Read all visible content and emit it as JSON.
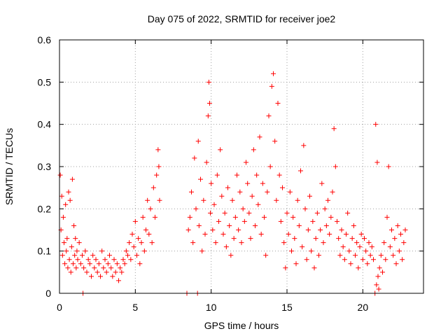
{
  "chart_data": {
    "type": "scatter",
    "title": "Day 075 of 2022, SRMTID for receiver joe2",
    "xlabel": "GPS time / hours",
    "ylabel": "SRMTID / TECUs",
    "xlim": [
      0,
      24
    ],
    "ylim": [
      0,
      0.6
    ],
    "xticks": [
      0,
      5,
      10,
      15,
      20
    ],
    "yticks": [
      0,
      0.1,
      0.2,
      0.3,
      0.4,
      0.5,
      0.6
    ],
    "xtick_labels": [
      "0",
      "5",
      "10",
      "15",
      "20"
    ],
    "ytick_labels": [
      "0",
      "0.1",
      "0.2",
      "0.3",
      "0.4",
      "0.5",
      "0.6"
    ],
    "grid": true,
    "marker": "plus",
    "marker_color": "#ff0000",
    "series": [
      {
        "name": "SRMTID",
        "points": [
          [
            0.05,
            0.28
          ],
          [
            0.1,
            0.15
          ],
          [
            0.15,
            0.23
          ],
          [
            0.2,
            0.09
          ],
          [
            0.25,
            0.18
          ],
          [
            0.3,
            0.12
          ],
          [
            0.35,
            0.07
          ],
          [
            0.4,
            0.21
          ],
          [
            0.45,
            0.1
          ],
          [
            0.5,
            0.13
          ],
          [
            0.55,
            0.06
          ],
          [
            0.6,
            0.24
          ],
          [
            0.65,
            0.08
          ],
          [
            0.7,
            0.22
          ],
          [
            0.75,
            0.05
          ],
          [
            0.8,
            0.11
          ],
          [
            0.85,
            0.27
          ],
          [
            0.9,
            0.07
          ],
          [
            0.95,
            0.16
          ],
          [
            1.0,
            0.09
          ],
          [
            1.05,
            0.13
          ],
          [
            1.1,
            0.06
          ],
          [
            1.15,
            0.1
          ],
          [
            1.2,
            0.08
          ],
          [
            1.3,
            0.12
          ],
          [
            1.4,
            0.07
          ],
          [
            1.5,
            0.09
          ],
          [
            1.55,
            0.0
          ],
          [
            1.6,
            0.06
          ],
          [
            1.7,
            0.1
          ],
          [
            1.8,
            0.05
          ],
          [
            1.9,
            0.08
          ],
          [
            2.0,
            0.07
          ],
          [
            2.1,
            0.04
          ],
          [
            2.2,
            0.09
          ],
          [
            2.3,
            0.06
          ],
          [
            2.4,
            0.08
          ],
          [
            2.5,
            0.05
          ],
          [
            2.6,
            0.07
          ],
          [
            2.7,
            0.04
          ],
          [
            2.8,
            0.1
          ],
          [
            2.9,
            0.06
          ],
          [
            3.0,
            0.08
          ],
          [
            3.1,
            0.05
          ],
          [
            3.2,
            0.07
          ],
          [
            3.3,
            0.09
          ],
          [
            3.4,
            0.06
          ],
          [
            3.5,
            0.04
          ],
          [
            3.6,
            0.08
          ],
          [
            3.7,
            0.05
          ],
          [
            3.8,
            0.07
          ],
          [
            3.9,
            0.03
          ],
          [
            4.0,
            0.06
          ],
          [
            4.1,
            0.05
          ],
          [
            4.2,
            0.08
          ],
          [
            4.3,
            0.07
          ],
          [
            4.4,
            0.1
          ],
          [
            4.5,
            0.09
          ],
          [
            4.6,
            0.12
          ],
          [
            4.7,
            0.08
          ],
          [
            4.8,
            0.14
          ],
          [
            4.9,
            0.11
          ],
          [
            5.0,
            0.17
          ],
          [
            5.1,
            0.09
          ],
          [
            5.2,
            0.13
          ],
          [
            5.3,
            0.07
          ],
          [
            5.4,
            0.12
          ],
          [
            5.5,
            0.18
          ],
          [
            5.6,
            0.1
          ],
          [
            5.7,
            0.15
          ],
          [
            5.8,
            0.22
          ],
          [
            5.9,
            0.14
          ],
          [
            6.0,
            0.2
          ],
          [
            6.1,
            0.12
          ],
          [
            6.2,
            0.25
          ],
          [
            6.3,
            0.18
          ],
          [
            6.4,
            0.28
          ],
          [
            6.5,
            0.34
          ],
          [
            6.55,
            0.3
          ],
          [
            6.6,
            0.22
          ],
          [
            8.4,
            0.0
          ],
          [
            8.5,
            0.15
          ],
          [
            8.6,
            0.18
          ],
          [
            8.7,
            0.24
          ],
          [
            8.8,
            0.12
          ],
          [
            8.9,
            0.32
          ],
          [
            9.0,
            0.2
          ],
          [
            9.1,
            0.0
          ],
          [
            9.15,
            0.36
          ],
          [
            9.2,
            0.16
          ],
          [
            9.3,
            0.27
          ],
          [
            9.4,
            0.1
          ],
          [
            9.5,
            0.22
          ],
          [
            9.6,
            0.14
          ],
          [
            9.7,
            0.31
          ],
          [
            9.8,
            0.42
          ],
          [
            9.85,
            0.5
          ],
          [
            9.9,
            0.45
          ],
          [
            9.95,
            0.19
          ],
          [
            10.0,
            0.26
          ],
          [
            10.1,
            0.15
          ],
          [
            10.2,
            0.21
          ],
          [
            10.3,
            0.12
          ],
          [
            10.4,
            0.28
          ],
          [
            10.5,
            0.17
          ],
          [
            10.6,
            0.34
          ],
          [
            10.7,
            0.23
          ],
          [
            10.8,
            0.14
          ],
          [
            10.9,
            0.19
          ],
          [
            11.0,
            0.11
          ],
          [
            11.1,
            0.25
          ],
          [
            11.2,
            0.16
          ],
          [
            11.3,
            0.09
          ],
          [
            11.4,
            0.22
          ],
          [
            11.5,
            0.13
          ],
          [
            11.6,
            0.18
          ],
          [
            11.7,
            0.28
          ],
          [
            11.8,
            0.15
          ],
          [
            11.9,
            0.24
          ],
          [
            12.0,
            0.12
          ],
          [
            12.1,
            0.2
          ],
          [
            12.2,
            0.17
          ],
          [
            12.3,
            0.31
          ],
          [
            12.4,
            0.26
          ],
          [
            12.5,
            0.19
          ],
          [
            12.6,
            0.13
          ],
          [
            12.7,
            0.23
          ],
          [
            12.8,
            0.34
          ],
          [
            12.9,
            0.16
          ],
          [
            13.0,
            0.28
          ],
          [
            13.1,
            0.21
          ],
          [
            13.2,
            0.37
          ],
          [
            13.3,
            0.14
          ],
          [
            13.4,
            0.26
          ],
          [
            13.5,
            0.18
          ],
          [
            13.6,
            0.09
          ],
          [
            13.7,
            0.24
          ],
          [
            13.8,
            0.42
          ],
          [
            13.9,
            0.3
          ],
          [
            14.0,
            0.49
          ],
          [
            14.1,
            0.52
          ],
          [
            14.2,
            0.36
          ],
          [
            14.3,
            0.22
          ],
          [
            14.4,
            0.45
          ],
          [
            14.5,
            0.28
          ],
          [
            14.6,
            0.17
          ],
          [
            14.7,
            0.25
          ],
          [
            14.8,
            0.12
          ],
          [
            14.9,
            0.06
          ],
          [
            15.0,
            0.19
          ],
          [
            15.1,
            0.14
          ],
          [
            15.2,
            0.24
          ],
          [
            15.3,
            0.1
          ],
          [
            15.4,
            0.18
          ],
          [
            15.5,
            0.13
          ],
          [
            15.6,
            0.07
          ],
          [
            15.7,
            0.22
          ],
          [
            15.8,
            0.16
          ],
          [
            15.9,
            0.29
          ],
          [
            16.0,
            0.11
          ],
          [
            16.1,
            0.35
          ],
          [
            16.2,
            0.2
          ],
          [
            16.3,
            0.08
          ],
          [
            16.4,
            0.15
          ],
          [
            16.5,
            0.23
          ],
          [
            16.6,
            0.1
          ],
          [
            16.7,
            0.17
          ],
          [
            16.8,
            0.06
          ],
          [
            16.9,
            0.13
          ],
          [
            17.0,
            0.19
          ],
          [
            17.1,
            0.09
          ],
          [
            17.2,
            0.15
          ],
          [
            17.3,
            0.26
          ],
          [
            17.4,
            0.12
          ],
          [
            17.5,
            0.2
          ],
          [
            17.6,
            0.16
          ],
          [
            17.7,
            0.22
          ],
          [
            17.8,
            0.14
          ],
          [
            17.9,
            0.18
          ],
          [
            18.0,
            0.24
          ],
          [
            18.1,
            0.39
          ],
          [
            18.2,
            0.3
          ],
          [
            18.3,
            0.17
          ],
          [
            18.4,
            0.13
          ],
          [
            18.5,
            0.09
          ],
          [
            18.6,
            0.15
          ],
          [
            18.7,
            0.11
          ],
          [
            18.8,
            0.08
          ],
          [
            18.9,
            0.14
          ],
          [
            19.0,
            0.19
          ],
          [
            19.1,
            0.1
          ],
          [
            19.2,
            0.07
          ],
          [
            19.3,
            0.13
          ],
          [
            19.4,
            0.16
          ],
          [
            19.5,
            0.09
          ],
          [
            19.6,
            0.12
          ],
          [
            19.7,
            0.06
          ],
          [
            19.8,
            0.11
          ],
          [
            19.9,
            0.14
          ],
          [
            20.0,
            0.08
          ],
          [
            20.1,
            0.13
          ],
          [
            20.2,
            0.1
          ],
          [
            20.3,
            0.07
          ],
          [
            20.4,
            0.12
          ],
          [
            20.5,
            0.09
          ],
          [
            20.6,
            0.11
          ],
          [
            20.7,
            0.08
          ],
          [
            20.8,
            0.0
          ],
          [
            20.85,
            0.4
          ],
          [
            20.9,
            0.02
          ],
          [
            20.95,
            0.31
          ],
          [
            21.0,
            0.04
          ],
          [
            21.05,
            0.01
          ],
          [
            21.1,
            0.06
          ],
          [
            21.2,
            0.09
          ],
          [
            21.3,
            0.05
          ],
          [
            21.4,
            0.12
          ],
          [
            21.5,
            0.08
          ],
          [
            21.6,
            0.18
          ],
          [
            21.7,
            0.3
          ],
          [
            21.8,
            0.11
          ],
          [
            21.9,
            0.15
          ],
          [
            22.0,
            0.09
          ],
          [
            22.1,
            0.13
          ],
          [
            22.2,
            0.07
          ],
          [
            22.3,
            0.16
          ],
          [
            22.4,
            0.1
          ],
          [
            22.5,
            0.14
          ],
          [
            22.6,
            0.08
          ],
          [
            22.7,
            0.12
          ],
          [
            22.8,
            0.15
          ]
        ]
      }
    ]
  }
}
